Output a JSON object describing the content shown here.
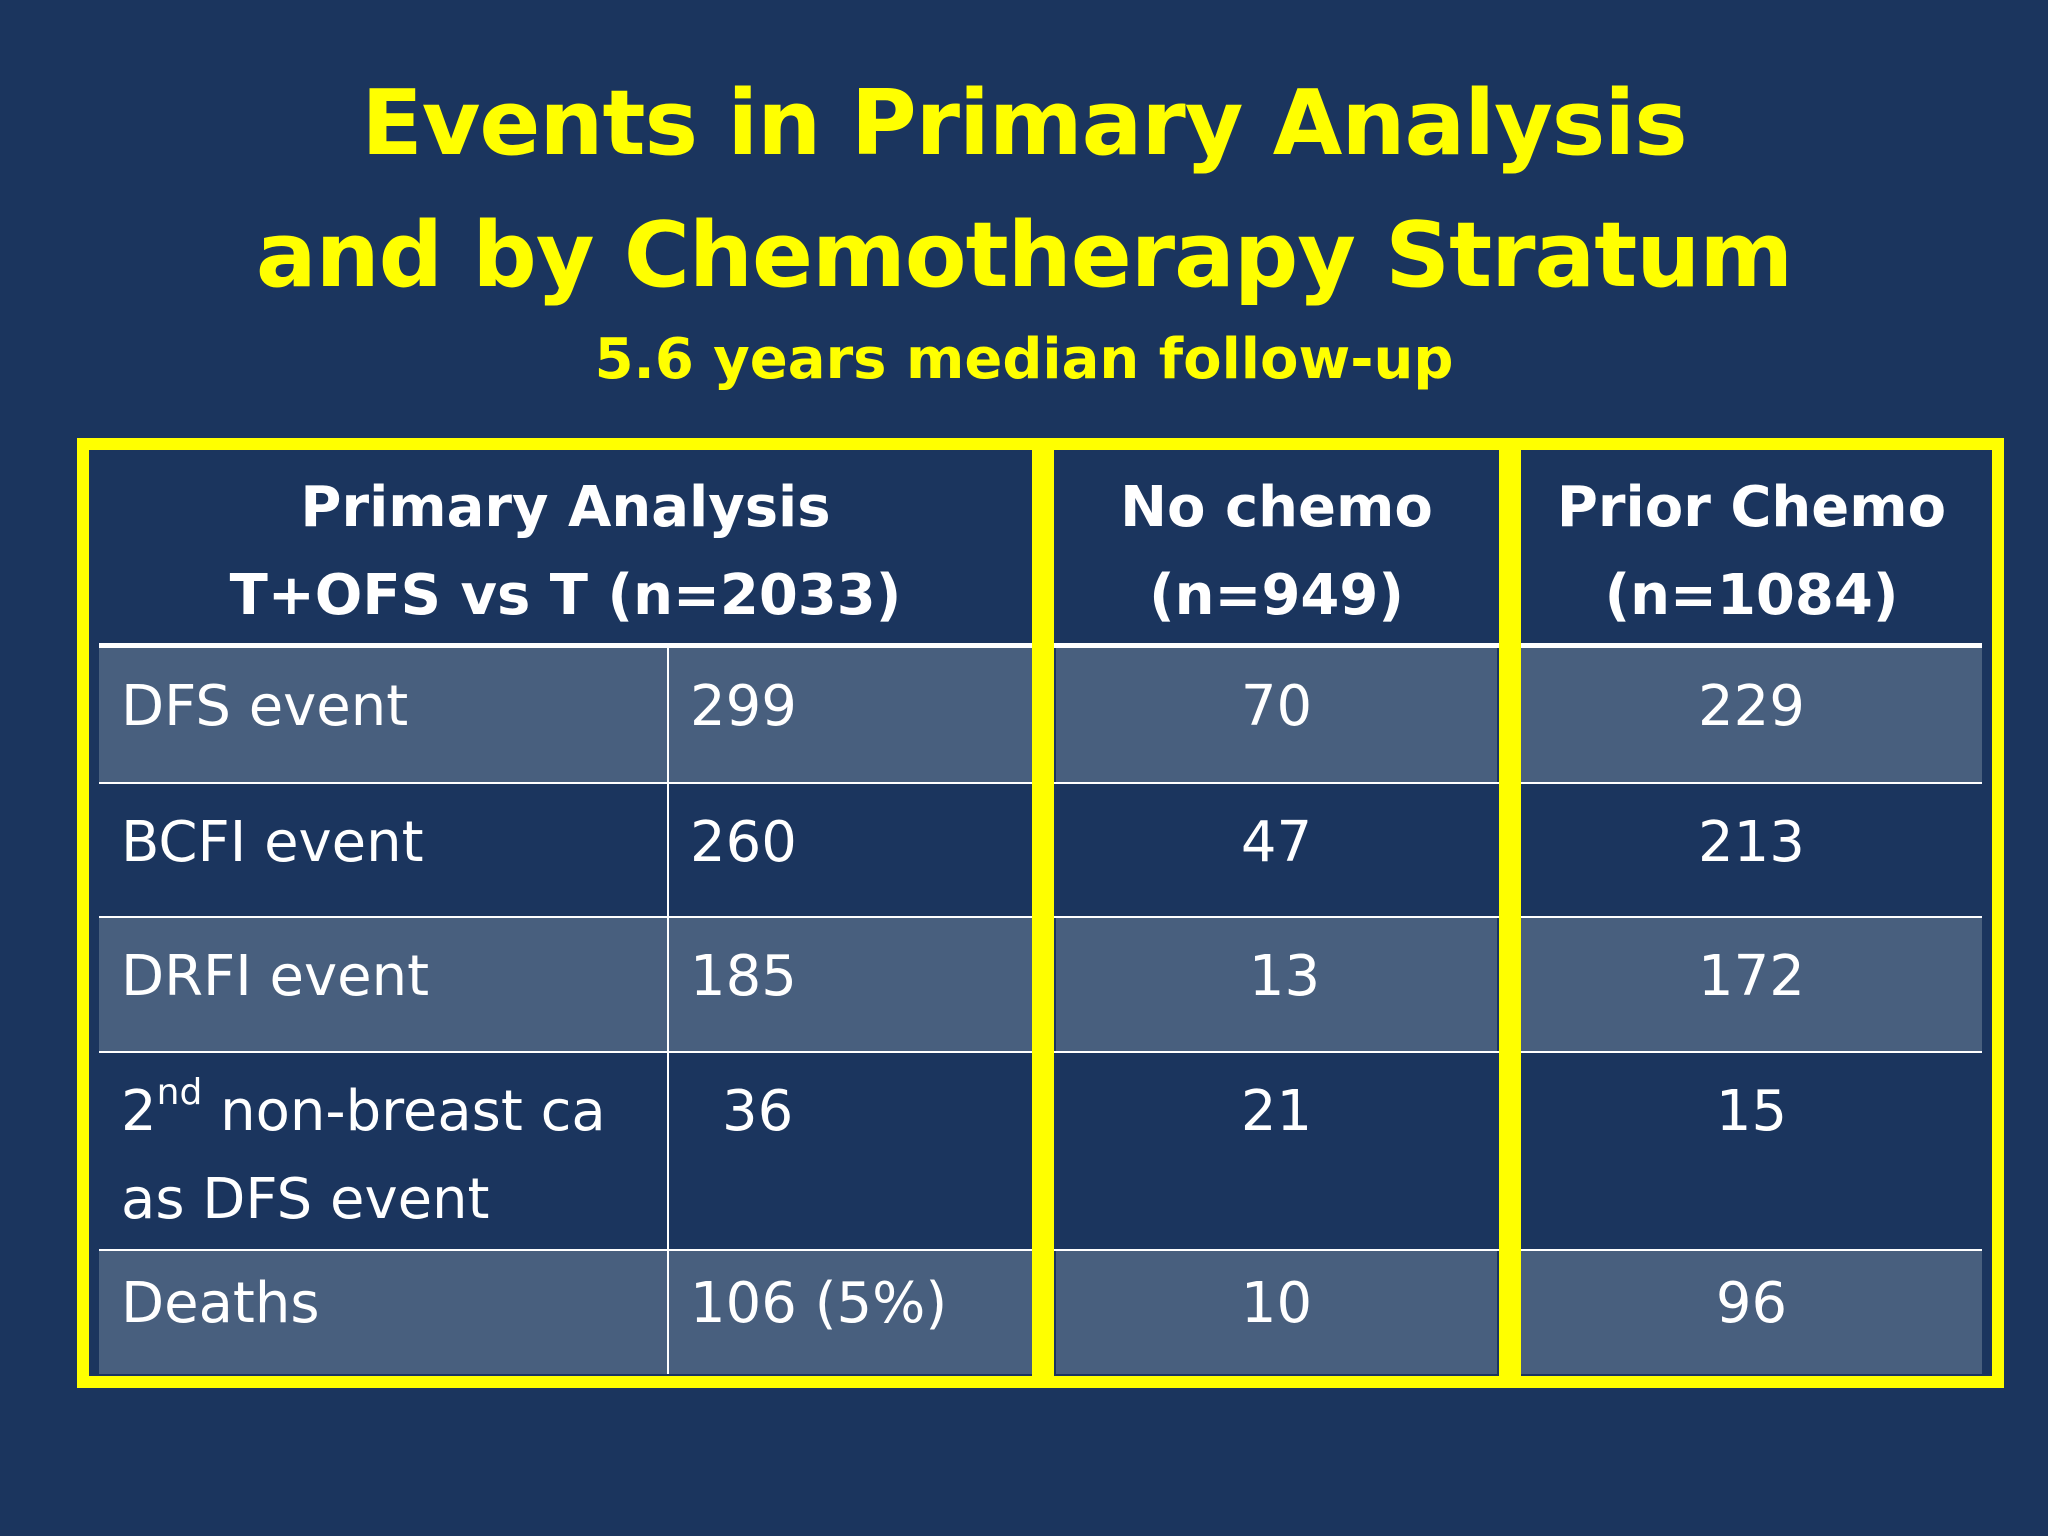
{
  "slide": {
    "title_line1": "Events in Primary Analysis",
    "title_line2": "and by Chemotherapy Stratum",
    "subtitle": "5.6 years median follow-up"
  },
  "table": {
    "headers": {
      "primary_line1": "Primary Analysis",
      "primary_line2": "T+OFS vs T (n=2033)",
      "nochemo_line1": "No chemo",
      "nochemo_line2": "(n=949)",
      "prior_line1": "Prior Chemo",
      "prior_line2": "(n=1084)"
    },
    "rows": [
      {
        "label": "DFS event",
        "primary": "299",
        "no_chemo": "70",
        "prior_chemo": "229"
      },
      {
        "label": "BCFI event",
        "primary": "260",
        "no_chemo": "47",
        "prior_chemo": "213"
      },
      {
        "label": "DRFI event",
        "primary": "185",
        "no_chemo": "13",
        "prior_chemo": "172"
      },
      {
        "label_prefix": "2",
        "label_sup": "nd",
        "label_rest": " non-breast ca",
        "label_line2": "as DFS event",
        "primary": "36",
        "no_chemo": "21",
        "prior_chemo": "15"
      },
      {
        "label": "Deaths",
        "primary": "106 (5%)",
        "no_chemo": "10",
        "prior_chemo": "96"
      }
    ]
  },
  "colors": {
    "background": "#1b355e",
    "title": "#ffff00",
    "row_light": "#485f7e",
    "highlight_border": "#ffff00"
  }
}
